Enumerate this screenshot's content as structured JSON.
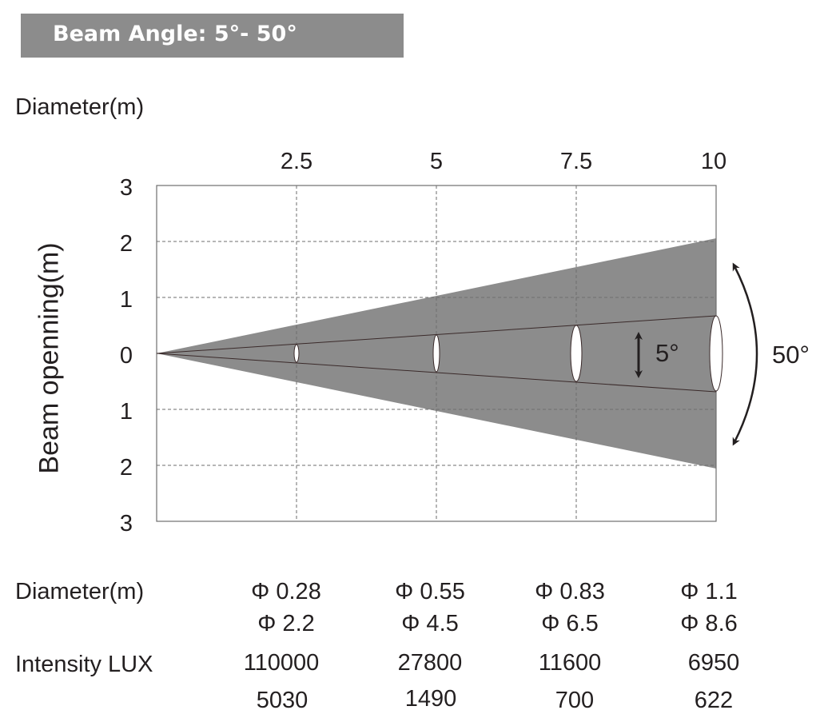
{
  "title": "Beam Angle: 5°- 50°",
  "diameter_label_top": "Diameter(m)",
  "y_axis_label": "Beam openning(m)",
  "x_ticks": [
    "2.5",
    "5",
    "7.5",
    "10"
  ],
  "y_ticks": [
    "3",
    "2",
    "1",
    "0",
    "1",
    "2",
    "3"
  ],
  "narrow_angle_label": "5°",
  "wide_angle_label": "50°",
  "colors": {
    "beam_fill": "#8c8c8c",
    "grid": "#6e6e6e",
    "text": "#231f20",
    "header_bg": "#8c8c8c"
  },
  "table": {
    "diameter_label": "Diameter(m)",
    "intensity_label": "Intensity LUX",
    "diameter_narrow": [
      "Φ 0.28",
      "Φ 0.55",
      "Φ 0.83",
      "Φ 1.1"
    ],
    "diameter_wide": [
      "Φ 2.2",
      "Φ 4.5",
      "Φ 6.5",
      "Φ 8.6"
    ],
    "lux_narrow": [
      "110000",
      "27800",
      "11600",
      "6950"
    ],
    "lux_wide": [
      "5030",
      "1490",
      "700",
      "622"
    ]
  }
}
